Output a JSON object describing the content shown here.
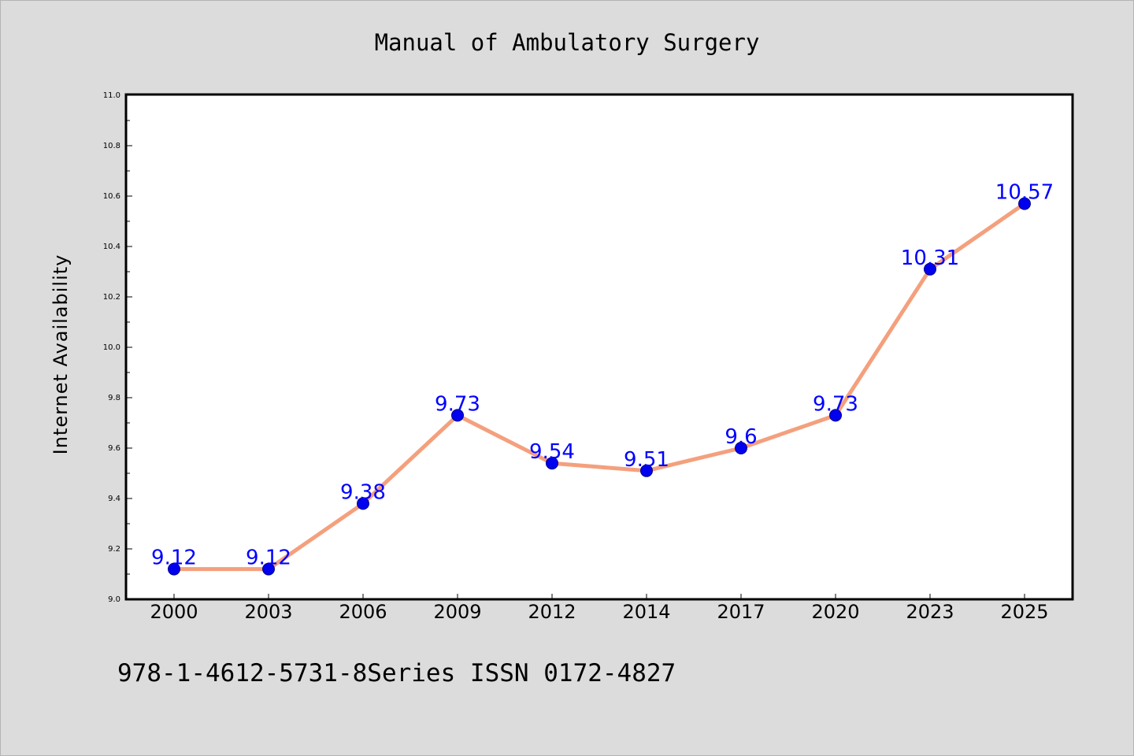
{
  "figure": {
    "title": "Manual of Ambulatory Surgery",
    "footer": "978-1-4612-5731-8Series ISSN 0172-4827"
  },
  "chart_data": {
    "type": "line",
    "title": "Manual of Ambulatory Surgery",
    "xlabel": "",
    "ylabel": "Internet Availability",
    "categories": [
      "2000",
      "2003",
      "2006",
      "2009",
      "2012",
      "2014",
      "2017",
      "2020",
      "2023",
      "2025"
    ],
    "series": [
      {
        "values": [
          9.12,
          9.12,
          9.38,
          9.73,
          9.54,
          9.51,
          9.6,
          9.73,
          10.31,
          10.57
        ],
        "data_labels": [
          "9.12",
          "9.12",
          "9.38",
          "9.73",
          "9.54",
          "9.51",
          "9.6",
          "9.73",
          "10.31",
          "10.57"
        ]
      }
    ],
    "ylim": [
      9.0,
      11.0
    ],
    "yticks": [
      "9.0",
      "9.2",
      "9.4",
      "9.6",
      "9.8",
      "10.0",
      "10.2",
      "10.4",
      "10.6",
      "10.8",
      "11.0"
    ],
    "grid": false,
    "legend": "none",
    "colors": {
      "line": "#f4a07d",
      "marker_fill": "#0000ee",
      "marker_edge": "#00008b",
      "data_label": "#0000ff",
      "plot_background": "#ffffff",
      "figure_background": "#dcdcdc"
    }
  }
}
